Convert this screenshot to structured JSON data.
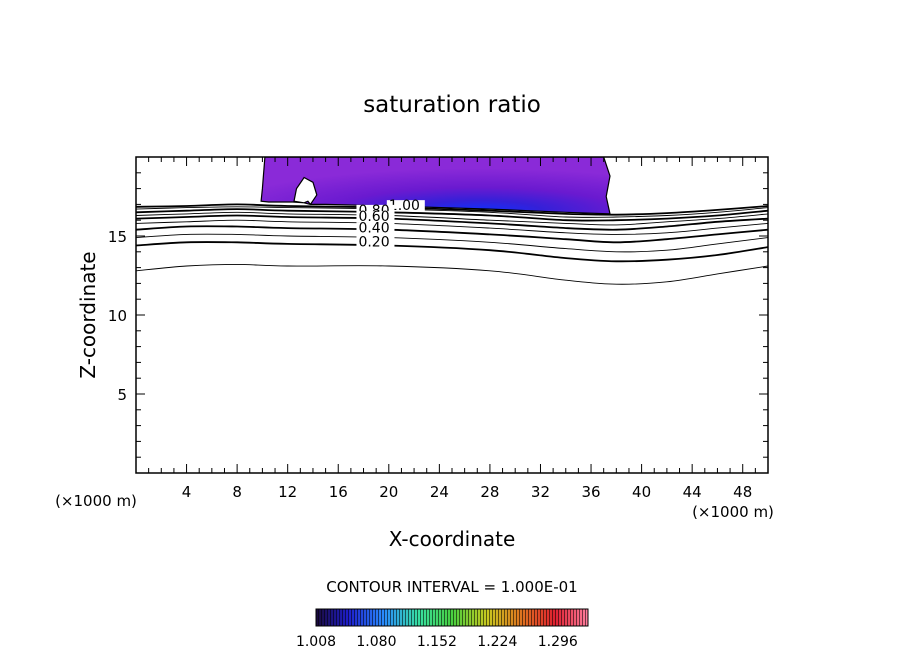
{
  "chart_data": {
    "type": "contour",
    "title": "saturation ratio",
    "xlabel": "X-coordinate",
    "ylabel": "Z-coordinate",
    "x_scale_label_left": "(×1000 m)",
    "x_scale_label_right": "(×1000 m)",
    "xlim": [
      0,
      50
    ],
    "ylim": [
      0,
      20
    ],
    "x_ticks": [
      4,
      8,
      12,
      16,
      20,
      24,
      28,
      32,
      36,
      40,
      44,
      48
    ],
    "y_ticks": [
      5,
      10,
      15
    ],
    "contour_interval_label": "CONTOUR INTERVAL = 1.000E-01",
    "contour_labels": [
      {
        "text": "1.00",
        "x": 20.0,
        "y": 16.7
      },
      {
        "text": "0.80",
        "x": 17.6,
        "y": 16.4
      },
      {
        "text": "0.60",
        "x": 17.6,
        "y": 16.0
      },
      {
        "text": "0.40",
        "x": 17.6,
        "y": 15.3
      },
      {
        "text": "0.20",
        "x": 17.6,
        "y": 14.4
      }
    ],
    "contour_lines": [
      {
        "level": 0.1,
        "heavy": false,
        "points": [
          [
            0,
            12.8
          ],
          [
            4,
            13.1
          ],
          [
            8,
            13.2
          ],
          [
            12,
            13.1
          ],
          [
            20,
            13.1
          ],
          [
            28,
            12.8
          ],
          [
            34,
            12.2
          ],
          [
            38,
            11.95
          ],
          [
            42,
            12.1
          ],
          [
            46,
            12.6
          ],
          [
            50,
            13.1
          ]
        ]
      },
      {
        "level": 0.2,
        "heavy": true,
        "points": [
          [
            0,
            14.4
          ],
          [
            4,
            14.6
          ],
          [
            8,
            14.6
          ],
          [
            12,
            14.5
          ],
          [
            20,
            14.4
          ],
          [
            28,
            14.1
          ],
          [
            34,
            13.6
          ],
          [
            38,
            13.4
          ],
          [
            42,
            13.5
          ],
          [
            46,
            13.8
          ],
          [
            50,
            14.3
          ]
        ]
      },
      {
        "level": 0.3,
        "heavy": false,
        "points": [
          [
            0,
            14.9
          ],
          [
            4,
            15.1
          ],
          [
            8,
            15.1
          ],
          [
            12,
            15.0
          ],
          [
            20,
            14.9
          ],
          [
            28,
            14.6
          ],
          [
            34,
            14.2
          ],
          [
            38,
            14.0
          ],
          [
            42,
            14.1
          ],
          [
            46,
            14.5
          ],
          [
            50,
            14.9
          ]
        ]
      },
      {
        "level": 0.4,
        "heavy": true,
        "points": [
          [
            0,
            15.4
          ],
          [
            4,
            15.6
          ],
          [
            8,
            15.6
          ],
          [
            12,
            15.5
          ],
          [
            20,
            15.4
          ],
          [
            28,
            15.1
          ],
          [
            34,
            14.8
          ],
          [
            38,
            14.6
          ],
          [
            42,
            14.8
          ],
          [
            46,
            15.1
          ],
          [
            50,
            15.4
          ]
        ]
      },
      {
        "level": 0.5,
        "heavy": false,
        "points": [
          [
            0,
            15.8
          ],
          [
            4,
            15.9
          ],
          [
            8,
            16.0
          ],
          [
            12,
            15.9
          ],
          [
            20,
            15.8
          ],
          [
            28,
            15.5
          ],
          [
            34,
            15.2
          ],
          [
            38,
            15.1
          ],
          [
            42,
            15.2
          ],
          [
            46,
            15.5
          ],
          [
            50,
            15.8
          ]
        ]
      },
      {
        "level": 0.6,
        "heavy": true,
        "points": [
          [
            0,
            16.1
          ],
          [
            4,
            16.2
          ],
          [
            8,
            16.3
          ],
          [
            12,
            16.2
          ],
          [
            20,
            16.1
          ],
          [
            28,
            15.8
          ],
          [
            34,
            15.5
          ],
          [
            38,
            15.4
          ],
          [
            42,
            15.6
          ],
          [
            46,
            15.9
          ],
          [
            50,
            16.1
          ]
        ]
      },
      {
        "level": 0.7,
        "heavy": false,
        "points": [
          [
            0,
            16.3
          ],
          [
            4,
            16.4
          ],
          [
            8,
            16.5
          ],
          [
            12,
            16.4
          ],
          [
            20,
            16.3
          ],
          [
            28,
            16.0
          ],
          [
            34,
            15.8
          ],
          [
            38,
            15.7
          ],
          [
            42,
            15.9
          ],
          [
            46,
            16.1
          ],
          [
            50,
            16.4
          ]
        ]
      },
      {
        "level": 0.8,
        "heavy": true,
        "points": [
          [
            0,
            16.5
          ],
          [
            4,
            16.6
          ],
          [
            8,
            16.7
          ],
          [
            12,
            16.6
          ],
          [
            20,
            16.5
          ],
          [
            28,
            16.3
          ],
          [
            34,
            16.0
          ],
          [
            38,
            16.0
          ],
          [
            42,
            16.1
          ],
          [
            46,
            16.3
          ],
          [
            50,
            16.6
          ]
        ]
      },
      {
        "level": 0.9,
        "heavy": false,
        "points": [
          [
            0,
            16.7
          ],
          [
            4,
            16.8
          ],
          [
            8,
            16.85
          ],
          [
            12,
            16.8
          ],
          [
            20,
            16.7
          ],
          [
            28,
            16.5
          ],
          [
            34,
            16.2
          ],
          [
            38,
            16.2
          ],
          [
            42,
            16.3
          ],
          [
            46,
            16.5
          ],
          [
            50,
            16.8
          ]
        ]
      },
      {
        "level": 1.0,
        "heavy": true,
        "points": [
          [
            0,
            16.85
          ],
          [
            4,
            16.9
          ],
          [
            8,
            17.0
          ],
          [
            12,
            16.9
          ],
          [
            20,
            16.8
          ],
          [
            28,
            16.6
          ],
          [
            34,
            16.4
          ],
          [
            38,
            16.35
          ],
          [
            42,
            16.45
          ],
          [
            46,
            16.65
          ],
          [
            50,
            16.9
          ]
        ]
      }
    ],
    "shaded_region": {
      "level_range": [
        1.008,
        1.296
      ],
      "outline": [
        [
          10.2,
          20
        ],
        [
          10.0,
          18.0
        ],
        [
          9.9,
          17.2
        ],
        [
          10.5,
          17.15
        ],
        [
          12.4,
          17.15
        ],
        [
          13.3,
          17.1
        ],
        [
          13.6,
          17.2
        ],
        [
          13.8,
          17.0
        ],
        [
          15.0,
          17.0
        ],
        [
          20,
          16.9
        ],
        [
          28,
          16.7
        ],
        [
          34,
          16.5
        ],
        [
          37.5,
          16.4
        ],
        [
          37.2,
          17.5
        ],
        [
          37.5,
          18.8
        ],
        [
          37.0,
          20
        ]
      ],
      "hole": [
        [
          12.5,
          17.2
        ],
        [
          12.7,
          18.0
        ],
        [
          13.3,
          18.7
        ],
        [
          14.0,
          18.4
        ],
        [
          14.3,
          17.6
        ],
        [
          13.8,
          17.0
        ],
        [
          13.3,
          17.1
        ]
      ]
    },
    "colorbar": {
      "min": 1.008,
      "max": 1.332,
      "tick_labels": [
        "1.008",
        "1.080",
        "1.152",
        "1.224",
        "1.296"
      ],
      "colors": [
        "#1a0a3a",
        "#1e1ecc",
        "#2a8cff",
        "#38e0a0",
        "#48d040",
        "#c8c820",
        "#e07020",
        "#e02030",
        "#ff80a0"
      ]
    },
    "grid": false,
    "legend": "none"
  }
}
